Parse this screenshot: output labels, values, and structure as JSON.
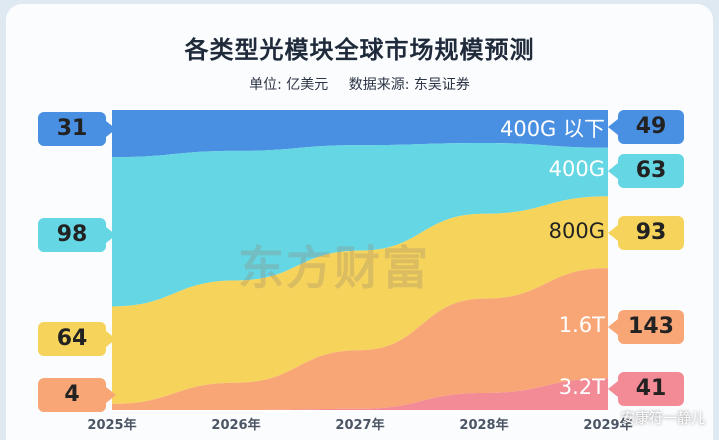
{
  "title": "各类型光模块全球市场规模预测",
  "unit": "单位: 亿美元",
  "source": "数据来源: 东吴证券",
  "watermark": "东方财富",
  "credit": "安康符一静儿",
  "colors": {
    "400G以下": "#4a90e2",
    "400G": "#65d6e3",
    "800G": "#f6d45c",
    "1.6T": "#f8a676",
    "3.2T": "#f28b96"
  },
  "chart_data": {
    "type": "area",
    "stacked": true,
    "percent": true,
    "x": [
      "2025年",
      "2026年",
      "2027年",
      "2028年",
      "2029年"
    ],
    "series": [
      {
        "name": "3.2T",
        "label": "3.2T",
        "values": [
          0,
          0,
          1,
          18,
          41
        ]
      },
      {
        "name": "1.6T",
        "label": "1.6T",
        "values": [
          4,
          20,
          50,
          100,
          143
        ]
      },
      {
        "name": "800G",
        "label": "800G",
        "values": [
          64,
          75,
          85,
          90,
          93
        ]
      },
      {
        "name": "400G",
        "label": "400G",
        "values": [
          98,
          95,
          90,
          75,
          63
        ]
      },
      {
        "name": "400G以下",
        "label": "400G 以下",
        "values": [
          31,
          30,
          30,
          35,
          49
        ]
      }
    ],
    "left_labels": [
      "31",
      "98",
      "64",
      "4"
    ],
    "right_labels": [
      "49",
      "63",
      "93",
      "143",
      "41"
    ]
  }
}
